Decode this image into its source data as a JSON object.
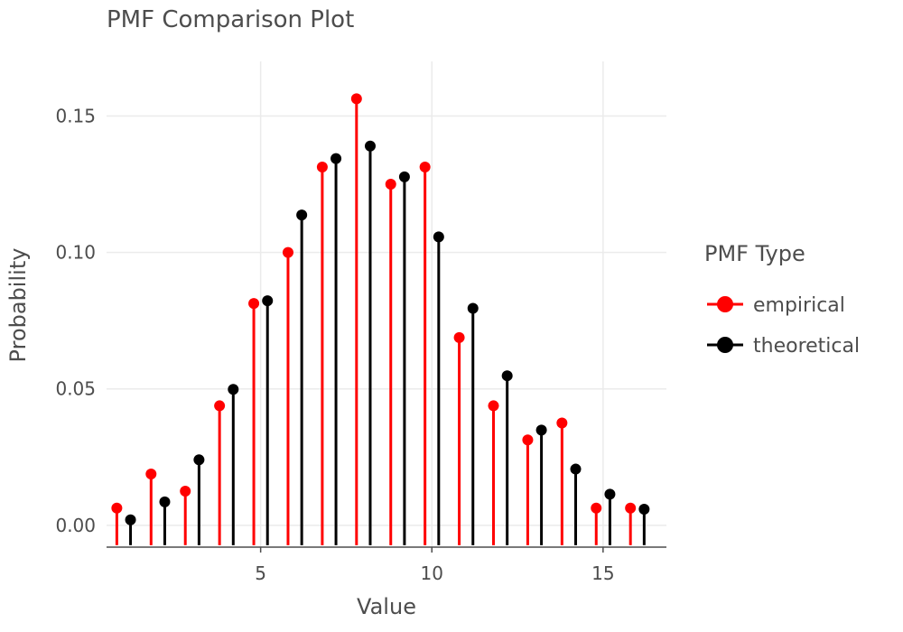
{
  "chart_data": {
    "type": "lollipop",
    "title": "PMF Comparison Plot",
    "xlabel": "Value",
    "ylabel": "Probability",
    "xlim": [
      0.5,
      16.85
    ],
    "ylim": [
      -0.008,
      0.17
    ],
    "x_ticks": [
      5,
      10,
      15
    ],
    "x_tick_labels": [
      "5",
      "10",
      "15"
    ],
    "y_ticks": [
      0,
      0.05,
      0.1,
      0.15
    ],
    "y_tick_labels": [
      "0.00",
      "0.05",
      "0.10",
      "0.15"
    ],
    "grid": true,
    "legend": {
      "title": "PMF Type",
      "position": "right",
      "entries": [
        "empirical",
        "theoretical"
      ]
    },
    "x": [
      1,
      2,
      3,
      4,
      5,
      6,
      7,
      8,
      9,
      10,
      11,
      12,
      13,
      14,
      15,
      16
    ],
    "series": [
      {
        "name": "empirical",
        "color": "#ff0000",
        "values": [
          0.0063,
          0.0188,
          0.0125,
          0.0438,
          0.0813,
          0.1,
          0.1313,
          0.1563,
          0.125,
          0.1313,
          0.0688,
          0.0438,
          0.0313,
          0.0375,
          0.0063,
          0.0063
        ]
      },
      {
        "name": "theoretical",
        "color": "#000000",
        "values": [
          0.002,
          0.0086,
          0.024,
          0.0498,
          0.0823,
          0.1137,
          0.1344,
          0.139,
          0.1277,
          0.1057,
          0.0795,
          0.0548,
          0.0349,
          0.0206,
          0.0114,
          0.0059
        ]
      }
    ]
  }
}
